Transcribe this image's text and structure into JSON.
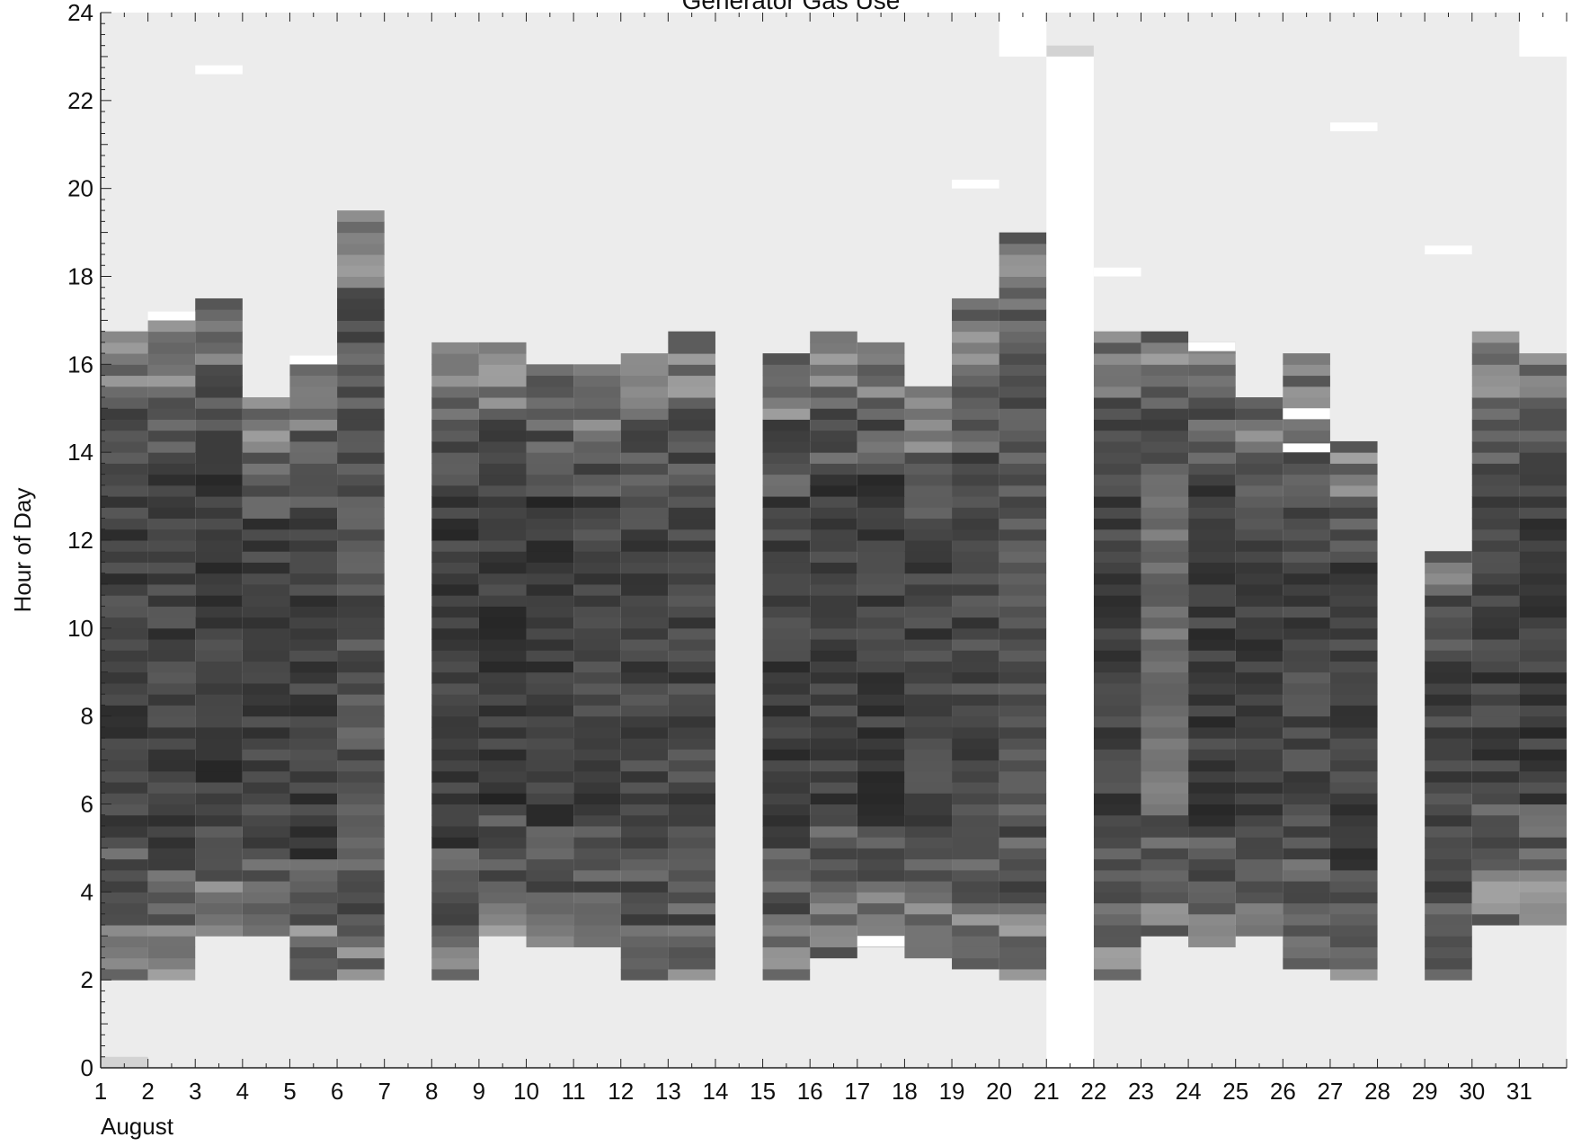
{
  "chart_data": {
    "type": "heatmap",
    "title": "Generator Gas Use",
    "xlabel": "August",
    "ylabel": "Hour of Day",
    "x_tick_labels": [
      "1",
      "2",
      "3",
      "4",
      "5",
      "6",
      "7",
      "8",
      "9",
      "10",
      "11",
      "12",
      "13",
      "14",
      "15",
      "16",
      "17",
      "18",
      "19",
      "20",
      "21",
      "22",
      "23",
      "24",
      "25",
      "26",
      "27",
      "28",
      "29",
      "30",
      "31"
    ],
    "y_tick_labels": [
      "0",
      "2",
      "4",
      "6",
      "8",
      "10",
      "12",
      "14",
      "16",
      "18",
      "20",
      "22",
      "24"
    ],
    "xlim": [
      1,
      32
    ],
    "ylim": [
      0,
      24
    ],
    "colors": {
      "background": "#ececec",
      "missing": "#ffffff",
      "low": "#d8d8d8",
      "high": "#1b1b1b"
    },
    "gap_days": [
      7,
      14,
      21
    ],
    "days": [
      {
        "day": 1,
        "start": 2.0,
        "end": 16.75,
        "mean": 0.8
      },
      {
        "day": 2,
        "start": 2.0,
        "end": 17.0,
        "mean": 0.8
      },
      {
        "day": 3,
        "start": 3.0,
        "end": 17.5,
        "mean": 0.82
      },
      {
        "day": 4,
        "start": 3.0,
        "end": 15.25,
        "mean": 0.8
      },
      {
        "day": 5,
        "start": 2.0,
        "end": 16.0,
        "mean": 0.82
      },
      {
        "day": 6,
        "start": 2.0,
        "end": 19.5,
        "mean": 0.72
      },
      {
        "day": 8,
        "start": 2.0,
        "end": 16.5,
        "mean": 0.82
      },
      {
        "day": 9,
        "start": 3.0,
        "end": 16.5,
        "mean": 0.84
      },
      {
        "day": 10,
        "start": 2.75,
        "end": 16.0,
        "mean": 0.84
      },
      {
        "day": 11,
        "start": 2.75,
        "end": 16.0,
        "mean": 0.8
      },
      {
        "day": 12,
        "start": 2.0,
        "end": 16.25,
        "mean": 0.8
      },
      {
        "day": 13,
        "start": 2.0,
        "end": 16.75,
        "mean": 0.78
      },
      {
        "day": 15,
        "start": 2.0,
        "end": 16.25,
        "mean": 0.82
      },
      {
        "day": 16,
        "start": 2.5,
        "end": 16.75,
        "mean": 0.82
      },
      {
        "day": 17,
        "start": 2.75,
        "end": 16.5,
        "mean": 0.82
      },
      {
        "day": 18,
        "start": 2.5,
        "end": 15.5,
        "mean": 0.8
      },
      {
        "day": 19,
        "start": 2.25,
        "end": 17.5,
        "mean": 0.78
      },
      {
        "day": 20,
        "start": 2.0,
        "end": 19.0,
        "mean": 0.7
      },
      {
        "day": 22,
        "start": 2.0,
        "end": 16.75,
        "mean": 0.8
      },
      {
        "day": 23,
        "start": 3.0,
        "end": 16.75,
        "mean": 0.6
      },
      {
        "day": 24,
        "start": 2.75,
        "end": 16.5,
        "mean": 0.82
      },
      {
        "day": 25,
        "start": 3.0,
        "end": 15.25,
        "mean": 0.8
      },
      {
        "day": 26,
        "start": 2.25,
        "end": 16.25,
        "mean": 0.78
      },
      {
        "day": 27,
        "start": 2.0,
        "end": 14.25,
        "mean": 0.8
      },
      {
        "day": 29,
        "start": 2.0,
        "end": 11.75,
        "mean": 0.8
      },
      {
        "day": 30,
        "start": 3.25,
        "end": 16.75,
        "mean": 0.82
      },
      {
        "day": 31,
        "start": 3.25,
        "end": 16.25,
        "mean": 0.82
      }
    ],
    "missing_blocks": [
      {
        "day_start": 20,
        "day_end": 21,
        "hour_start": 23.0,
        "hour_end": 24.0
      },
      {
        "day_start": 21,
        "day_end": 22,
        "hour_start": 0.0,
        "hour_end": 23.0
      },
      {
        "day_start": 31,
        "day_end": 32,
        "hour_start": 23.0,
        "hour_end": 24.0
      },
      {
        "day_start": 3,
        "day_end": 4,
        "hour_start": 22.6,
        "hour_end": 22.8
      },
      {
        "day_start": 2,
        "day_end": 3,
        "hour_start": 17.0,
        "hour_end": 17.2
      },
      {
        "day_start": 5,
        "day_end": 6,
        "hour_start": 16.0,
        "hour_end": 16.2
      },
      {
        "day_start": 19,
        "day_end": 20,
        "hour_start": 20.0,
        "hour_end": 20.2
      },
      {
        "day_start": 22,
        "day_end": 23,
        "hour_start": 18.0,
        "hour_end": 18.2
      },
      {
        "day_start": 27,
        "day_end": 28,
        "hour_start": 21.3,
        "hour_end": 21.5
      },
      {
        "day_start": 29,
        "day_end": 30,
        "hour_start": 18.5,
        "hour_end": 18.7
      },
      {
        "day_start": 24,
        "day_end": 25,
        "hour_start": 16.3,
        "hour_end": 16.5
      },
      {
        "day_start": 26,
        "day_end": 27,
        "hour_start": 14.0,
        "hour_end": 14.2
      },
      {
        "day_start": 26,
        "day_end": 27,
        "hour_start": 14.75,
        "hour_end": 15.0
      },
      {
        "day_start": 17,
        "day_end": 18,
        "hour_start": 2.75,
        "hour_end": 3.0
      }
    ],
    "light_blocks": [
      {
        "day_start": 21,
        "day_end": 22,
        "hour_start": 23.0,
        "hour_end": 23.25,
        "level": 0.12
      },
      {
        "day_start": 1,
        "day_end": 2,
        "hour_start": 0.0,
        "hour_end": 0.25,
        "level": 0.12
      }
    ]
  }
}
